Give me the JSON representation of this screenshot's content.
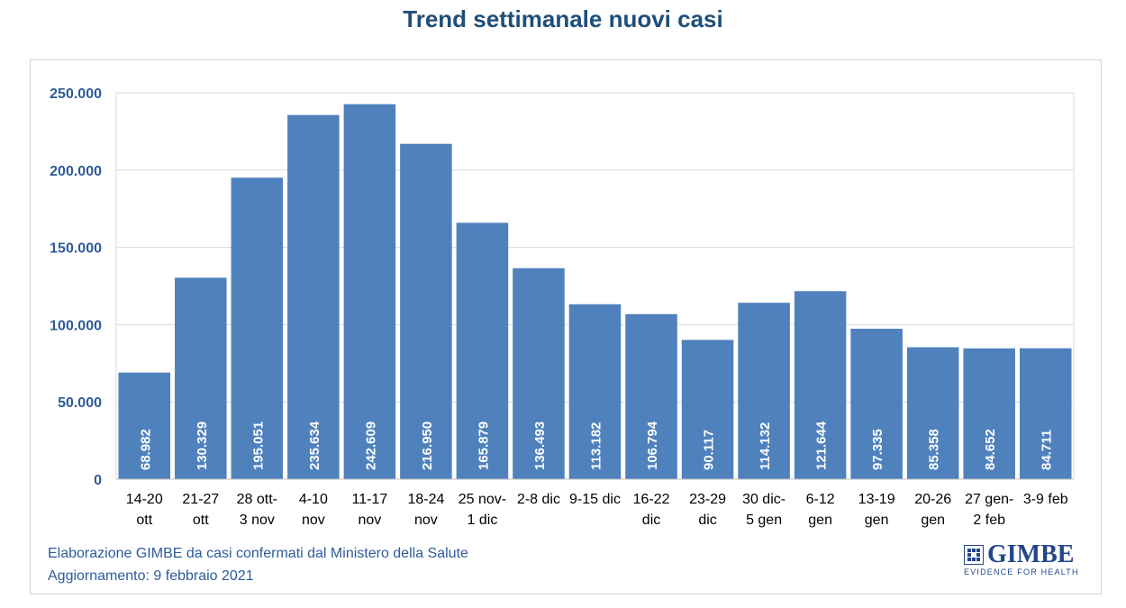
{
  "title": "Trend settimanale nuovi casi",
  "footer": {
    "line1": "Elaborazione GIMBE da casi confermati dal Ministero della Salute",
    "line2": "Aggiornamento: 9 febbraio 2021"
  },
  "logo": {
    "name": "GIMBE",
    "tagline": "EVIDENCE FOR HEALTH"
  },
  "colors": {
    "bar": "#4f81bd",
    "title": "#1f4e79",
    "axis_text": "#2e5b9a",
    "bar_label": "#ffffff",
    "grid": "#d9d9d9"
  },
  "chart_data": {
    "type": "bar",
    "title": "Trend settimanale nuovi casi",
    "xlabel": "",
    "ylabel": "",
    "ylim": [
      0,
      250000
    ],
    "yticks": [
      0,
      50000,
      100000,
      150000,
      200000,
      250000
    ],
    "ytick_labels": [
      "0",
      "50.000",
      "100.000",
      "150.000",
      "200.000",
      "250.000"
    ],
    "grid": true,
    "categories": [
      [
        "14-20",
        "ott"
      ],
      [
        "21-27",
        "ott"
      ],
      [
        "28 ott-",
        "3 nov"
      ],
      [
        "4-10",
        "nov"
      ],
      [
        "11-17",
        "nov"
      ],
      [
        "18-24",
        "nov"
      ],
      [
        "25 nov-",
        "1 dic"
      ],
      [
        "2-8 dic"
      ],
      [
        "9-15 dic"
      ],
      [
        "16-22",
        "dic"
      ],
      [
        "23-29",
        "dic"
      ],
      [
        "30 dic-",
        "5 gen"
      ],
      [
        "6-12",
        "gen"
      ],
      [
        "13-19",
        "gen"
      ],
      [
        "20-26",
        "gen"
      ],
      [
        "27 gen-",
        "2 feb"
      ],
      [
        "3-9 feb"
      ]
    ],
    "values": [
      68982,
      130329,
      195051,
      235634,
      242609,
      216950,
      165879,
      136493,
      113182,
      106794,
      90117,
      114132,
      121644,
      97335,
      85358,
      84652,
      84711
    ],
    "value_labels": [
      "68.982",
      "130.329",
      "195.051",
      "235.634",
      "242.609",
      "216.950",
      "165.879",
      "136.493",
      "113.182",
      "106.794",
      "90.117",
      "114.132",
      "121.644",
      "97.335",
      "85.358",
      "84.652",
      "84.711"
    ]
  }
}
